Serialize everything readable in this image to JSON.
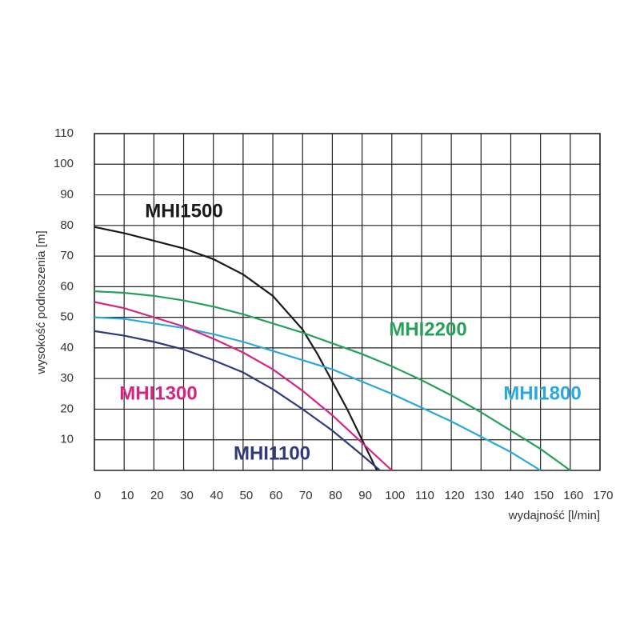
{
  "chart_data": {
    "type": "line",
    "x_label": "wydajność [l/min]",
    "y_label": "wysokość podnoszenia [m]",
    "xlim": [
      0,
      170
    ],
    "xticks": [
      0,
      10,
      20,
      30,
      40,
      50,
      60,
      70,
      80,
      90,
      100,
      110,
      120,
      130,
      140,
      150,
      160,
      170
    ],
    "ylim": [
      0,
      110
    ],
    "yticks": [
      10,
      20,
      30,
      40,
      50,
      60,
      70,
      80,
      90,
      100,
      110
    ],
    "grid": true,
    "series": [
      {
        "name": "MHI1500",
        "color": "#1a1a1a",
        "x": [
          0,
          10,
          20,
          30,
          40,
          50,
          60,
          70,
          75,
          80,
          85,
          90,
          93,
          95
        ],
        "values": [
          79.5,
          77.5,
          75,
          72.5,
          69,
          64,
          57,
          46,
          38,
          29,
          20,
          10,
          4,
          0
        ]
      },
      {
        "name": "MHI2200",
        "color": "#27a05a",
        "x": [
          0,
          10,
          20,
          30,
          40,
          50,
          60,
          70,
          80,
          90,
          100,
          110,
          120,
          130,
          140,
          150,
          160
        ],
        "values": [
          58.5,
          58,
          57,
          55.5,
          53.5,
          51,
          48,
          45,
          41.5,
          38,
          34,
          29.5,
          24.5,
          19,
          13,
          7,
          0
        ]
      },
      {
        "name": "MHI1800",
        "color": "#2aa7de",
        "x": [
          0,
          10,
          20,
          30,
          40,
          50,
          60,
          70,
          80,
          90,
          100,
          110,
          120,
          130,
          140,
          150
        ],
        "values": [
          50,
          49.5,
          48,
          46.5,
          44.5,
          42,
          39,
          36,
          33,
          29,
          25,
          20.5,
          16,
          11,
          6,
          0
        ]
      },
      {
        "name": "MHI1300",
        "color": "#d6247f",
        "x": [
          0,
          10,
          20,
          30,
          40,
          50,
          60,
          70,
          80,
          90,
          100
        ],
        "values": [
          55,
          53,
          50,
          47,
          43,
          38.5,
          33,
          26,
          18,
          9,
          0
        ]
      },
      {
        "name": "MHI1100",
        "color": "#2e3a7a",
        "x": [
          0,
          10,
          20,
          30,
          40,
          50,
          60,
          70,
          80,
          90,
          96
        ],
        "values": [
          45.5,
          44,
          42,
          39.5,
          36,
          32,
          26.5,
          20,
          13,
          5,
          0
        ]
      }
    ]
  }
}
